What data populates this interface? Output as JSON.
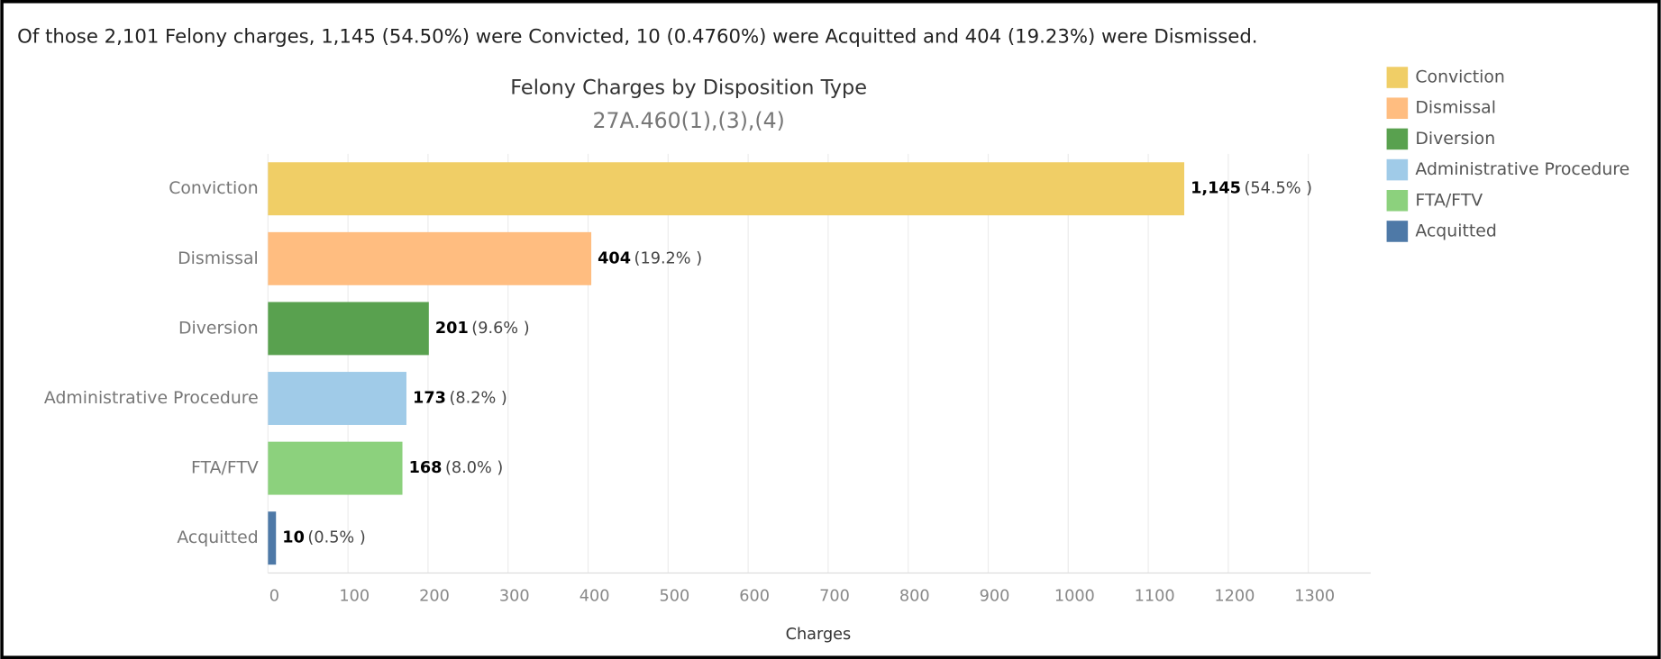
{
  "headline": "Of those 2,101 Felony charges, 1,145 (54.50%) were Convicted, 10 (0.4760%) were Acquitted and 404 (19.23%) were Dismissed.",
  "chart_data": {
    "type": "hbar",
    "title": "Felony Charges by Disposition Type",
    "subtitle": "27A.460(1),(3),(4)",
    "x_label": "Charges",
    "categories": [
      "Conviction",
      "Dismissal",
      "Diversion",
      "Administrative Procedure",
      "FTA/FTV",
      "Acquitted"
    ],
    "values": [
      1145,
      404,
      201,
      173,
      168,
      10
    ],
    "value_labels": [
      "1,145",
      "404",
      "201",
      "173",
      "168",
      "10"
    ],
    "share_labels": [
      "(54.5% )",
      "(19.2% )",
      "(9.6% )",
      "(8.2% )",
      "(8.0% )",
      "(0.5% )"
    ],
    "colors": [
      "#f0ce66",
      "#ffbd80",
      "#59a14f",
      "#a0cbe8",
      "#8cd17d",
      "#4e79a7"
    ],
    "xlim": [
      0,
      1378
    ],
    "xticks": [
      0,
      100,
      200,
      300,
      400,
      500,
      600,
      700,
      800,
      900,
      1000,
      1100,
      1200,
      1300
    ],
    "grid": true,
    "legend": "top-right"
  }
}
